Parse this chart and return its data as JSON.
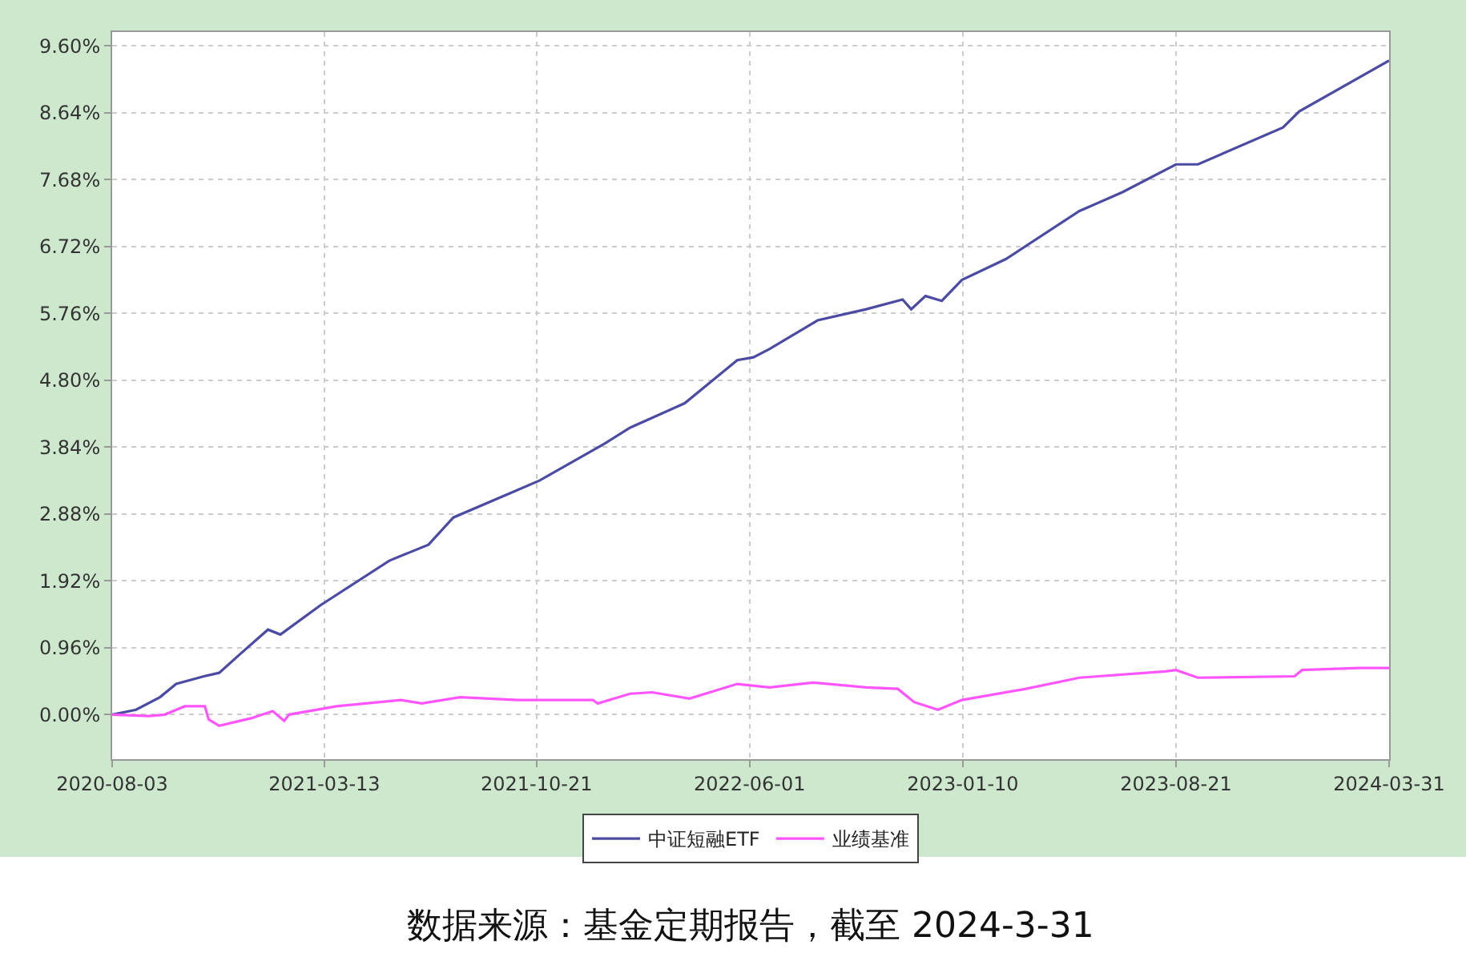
{
  "chart_data": {
    "type": "line",
    "annotations": [
      "数据来源：基金定期报告，截至 2024-3-31"
    ],
    "series": [
      {
        "name": "中证短融ETF",
        "color": "#4b4ba3",
        "x": [
          "2020-08-03",
          "2020-08-28",
          "2020-09-22",
          "2020-10-09",
          "2020-11-07",
          "2020-11-23",
          "2020-12-15",
          "2021-01-13",
          "2021-01-26",
          "2021-03-09",
          "2021-05-20",
          "2021-06-30",
          "2021-07-26",
          "2021-09-27",
          "2021-10-24",
          "2021-12-31",
          "2022-01-27",
          "2022-03-25",
          "2022-05-19",
          "2022-06-05",
          "2022-06-22",
          "2022-08-11",
          "2022-10-01",
          "2022-11-08",
          "2022-11-17",
          "2022-12-02",
          "2022-12-19",
          "2023-01-09",
          "2023-02-24",
          "2023-05-12",
          "2023-06-26",
          "2023-08-21",
          "2023-09-13",
          "2023-12-11",
          "2023-12-28",
          "2024-03-31"
        ],
        "values": [
          0,
          0.07,
          0.25,
          0.44,
          0.55,
          0.6,
          0.87,
          1.22,
          1.15,
          1.57,
          2.21,
          2.44,
          2.83,
          3.2,
          3.36,
          3.89,
          4.12,
          4.47,
          5.09,
          5.13,
          5.25,
          5.66,
          5.82,
          5.96,
          5.82,
          6.01,
          5.94,
          6.24,
          6.54,
          7.23,
          7.5,
          7.9,
          7.9,
          8.43,
          8.66,
          9.39
        ]
      },
      {
        "name": "业绩基准",
        "color": "#ff55ff",
        "x": [
          "2020-08-03",
          "2020-09-11",
          "2020-09-27",
          "2020-10-18",
          "2020-11-08",
          "2020-11-12",
          "2020-11-23",
          "2020-12-27",
          "2021-01-18",
          "2021-01-30",
          "2021-02-04",
          "2021-03-26",
          "2021-06-01",
          "2021-06-23",
          "2021-08-02",
          "2021-10-02",
          "2021-12-19",
          "2021-12-24",
          "2022-01-27",
          "2022-02-19",
          "2022-03-30",
          "2022-05-19",
          "2022-06-22",
          "2022-08-06",
          "2022-10-01",
          "2022-11-03",
          "2022-11-20",
          "2022-12-15",
          "2023-01-09",
          "2023-03-17",
          "2023-05-12",
          "2023-08-10",
          "2023-08-21",
          "2023-09-13",
          "2023-12-23",
          "2023-12-31",
          "2024-02-28",
          "2024-03-31"
        ],
        "values": [
          0,
          -0.02,
          0,
          0.12,
          0.12,
          -0.07,
          -0.16,
          -0.05,
          0.05,
          -0.09,
          0,
          0.12,
          0.21,
          0.16,
          0.25,
          0.21,
          0.21,
          0.16,
          0.3,
          0.32,
          0.23,
          0.44,
          0.39,
          0.46,
          0.39,
          0.37,
          0.18,
          0.07,
          0.21,
          0.37,
          0.53,
          0.62,
          0.64,
          0.53,
          0.55,
          0.64,
          0.67,
          0.67
        ]
      }
    ],
    "xlim": [
      "2020-08-03",
      "2024-03-31"
    ],
    "xticks": [
      "2020-08-03",
      "2021-03-13",
      "2021-10-21",
      "2022-06-01",
      "2023-01-10",
      "2023-08-21",
      "2024-03-31"
    ],
    "ylim": [
      -0.64,
      9.8
    ],
    "yticks": [
      {
        "value": 0,
        "label": "0.00%"
      },
      {
        "value": 0.96,
        "label": "0.96%"
      },
      {
        "value": 1.92,
        "label": "1.92%"
      },
      {
        "value": 2.88,
        "label": "2.88%"
      },
      {
        "value": 3.84,
        "label": "3.84%"
      },
      {
        "value": 4.8,
        "label": "4.80%"
      },
      {
        "value": 5.76,
        "label": "5.76%"
      },
      {
        "value": 6.72,
        "label": "6.72%"
      },
      {
        "value": 7.68,
        "label": "7.68%"
      },
      {
        "value": 8.64,
        "label": "8.64%"
      },
      {
        "value": 9.6,
        "label": "9.60%"
      }
    ],
    "grid": true,
    "legend": "bottom",
    "marker": "none",
    "line_style": "solid"
  }
}
